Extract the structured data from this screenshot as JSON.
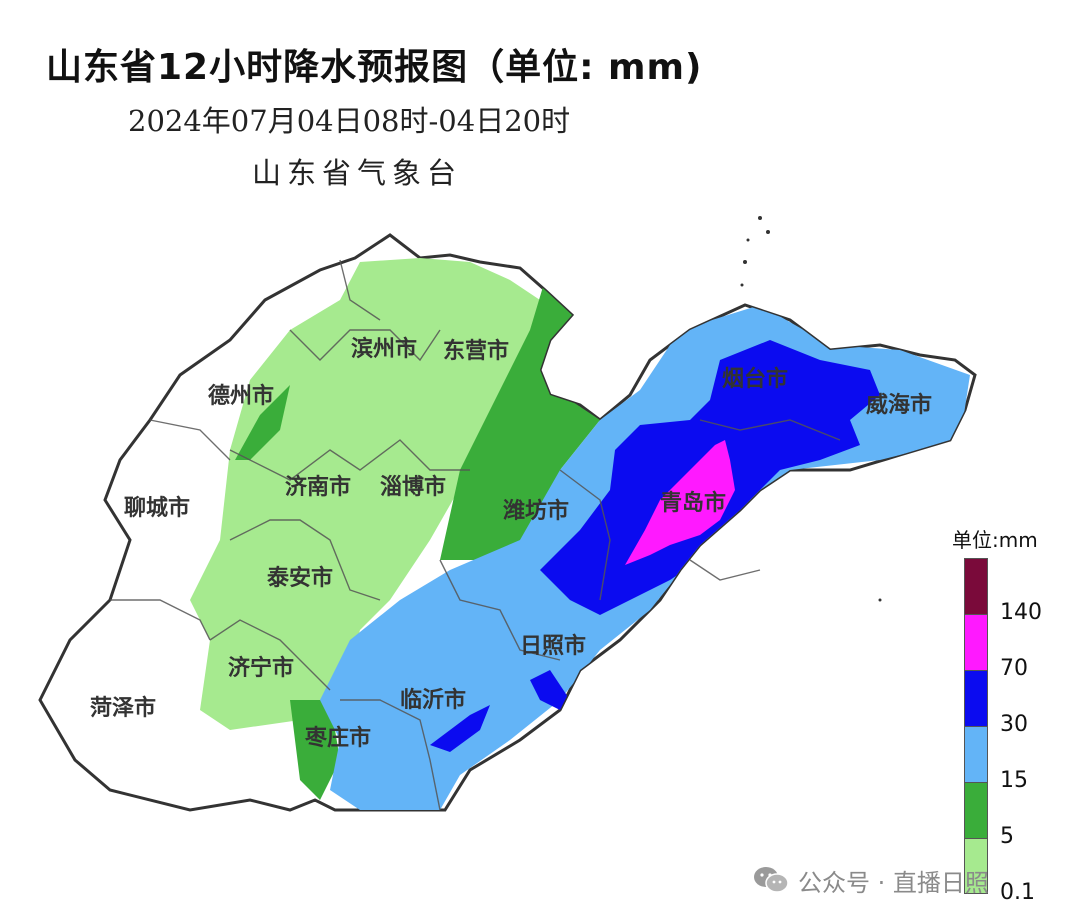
{
  "header": {
    "title": "山东省12小时降水预报图（单位: mm)",
    "subtitle": "2024年07月04日08时-04日20时",
    "agency": "山东省气象台"
  },
  "cities": [
    {
      "key": "binzhou",
      "label": "滨州市"
    },
    {
      "key": "dongying",
      "label": "东营市"
    },
    {
      "key": "dezhou",
      "label": "德州市"
    },
    {
      "key": "yantai",
      "label": "烟台市"
    },
    {
      "key": "weihai",
      "label": "威海市"
    },
    {
      "key": "jinan",
      "label": "济南市"
    },
    {
      "key": "zibo",
      "label": "淄博市"
    },
    {
      "key": "liaocheng",
      "label": "聊城市"
    },
    {
      "key": "weifang",
      "label": "潍坊市"
    },
    {
      "key": "qingdao",
      "label": "青岛市"
    },
    {
      "key": "taian",
      "label": "泰安市"
    },
    {
      "key": "rizhao",
      "label": "日照市"
    },
    {
      "key": "jining",
      "label": "济宁市"
    },
    {
      "key": "linyi",
      "label": "临沂市"
    },
    {
      "key": "heze",
      "label": "菏泽市"
    },
    {
      "key": "zaozhuang",
      "label": "枣庄市"
    }
  ],
  "legend": {
    "unit_label": "单位:mm",
    "bins": [
      {
        "color": "#7a0a3a"
      },
      {
        "color": "#ff19ff",
        "label": "140"
      },
      {
        "color": "#0b0bf0",
        "label": "70"
      },
      {
        "color": "#63b4f7",
        "label": "30"
      },
      {
        "color": "#3aad3a",
        "label": "15"
      },
      {
        "color": "#a6ea8f",
        "label": "5"
      }
    ],
    "bottom_label": "0.1"
  },
  "colors": {
    "none": "#ffffff",
    "light": "#a6ea8f",
    "moderate": "#3aad3a",
    "heavy": "#63b4f7",
    "storm": "#0b0bf0",
    "severe": "#ff19ff",
    "extreme": "#7a0a3a"
  },
  "watermark": {
    "icon": "wechat-icon",
    "text": "公众号 · 直播日照"
  }
}
